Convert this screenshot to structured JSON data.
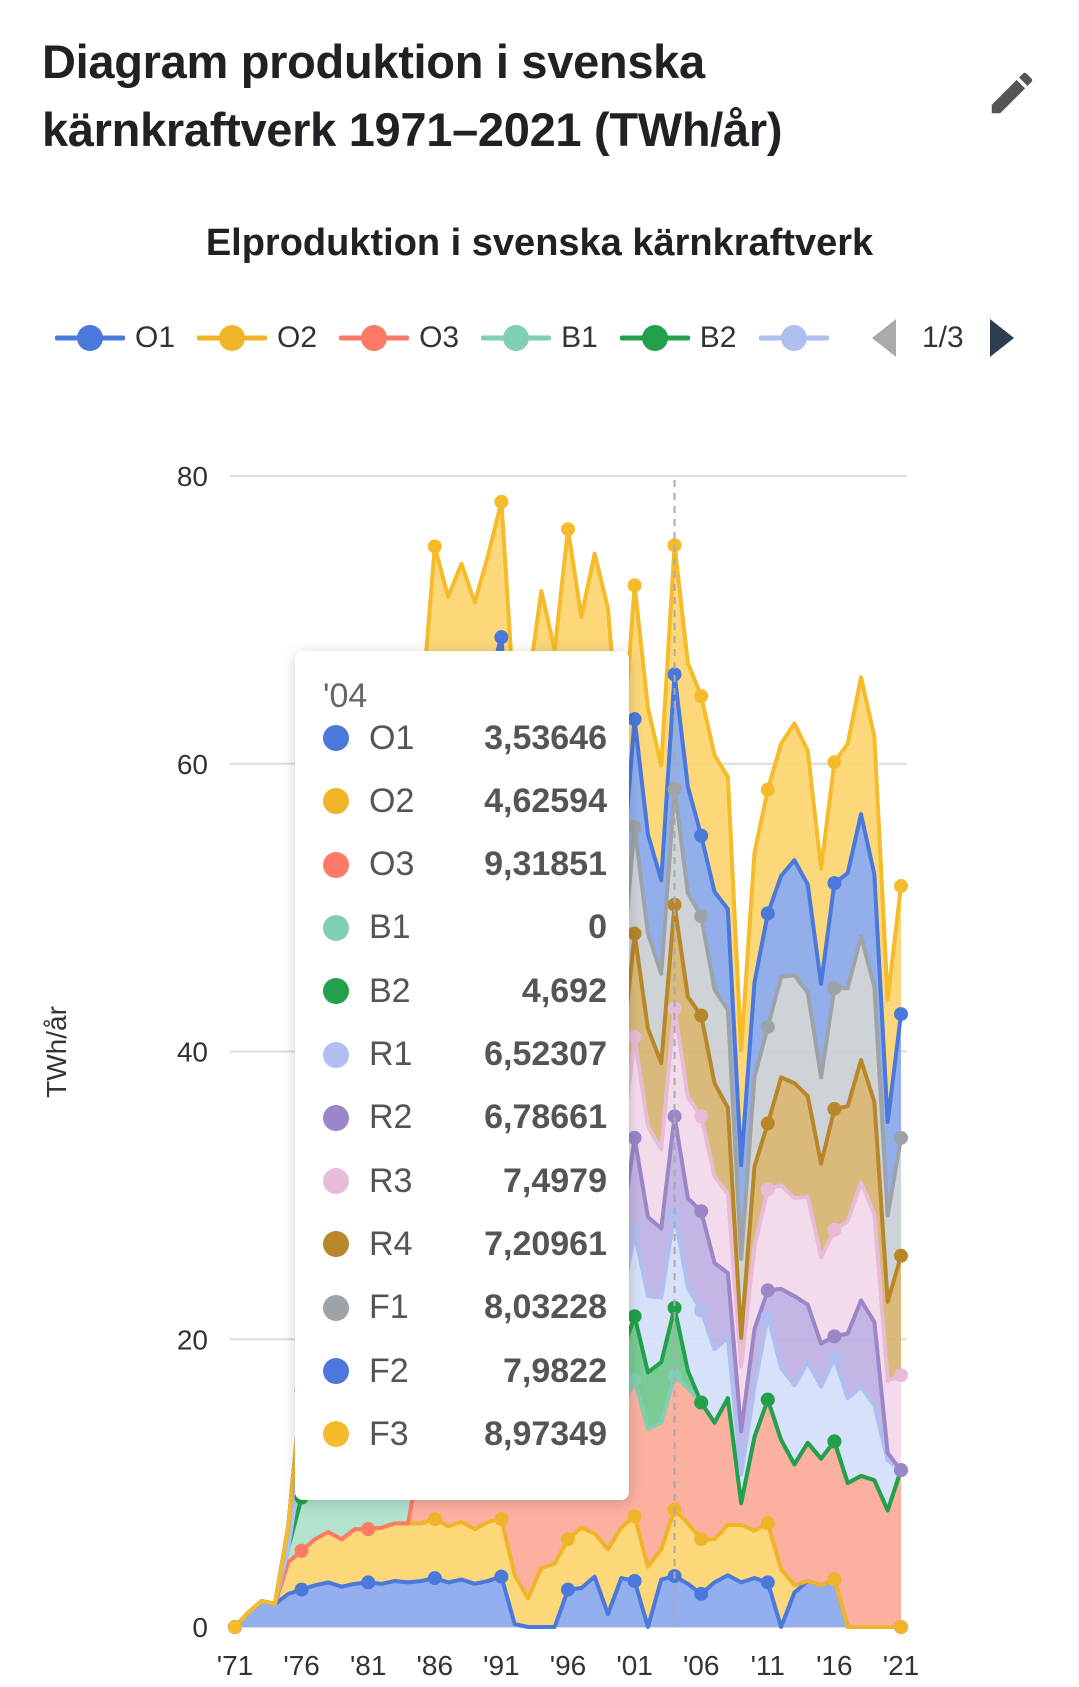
{
  "header": {
    "title": "Diagram produktion i svenska kärnkraftverk 1971–2021 (TWh/år)",
    "edit_icon": "pencil-icon"
  },
  "legend_pager": {
    "label": "1/3"
  },
  "tooltip": {
    "title": "'04",
    "rows": [
      {
        "name": "O1",
        "value": "3,53646"
      },
      {
        "name": "O2",
        "value": "4,62594"
      },
      {
        "name": "O3",
        "value": "9,31851"
      },
      {
        "name": "B1",
        "value": "0"
      },
      {
        "name": "B2",
        "value": "4,692"
      },
      {
        "name": "R1",
        "value": "6,52307"
      },
      {
        "name": "R2",
        "value": "6,78661"
      },
      {
        "name": "R3",
        "value": "7,4979"
      },
      {
        "name": "R4",
        "value": "7,20961"
      },
      {
        "name": "F1",
        "value": "8,03228"
      },
      {
        "name": "F2",
        "value": "7,9822"
      },
      {
        "name": "F3",
        "value": "8,97349"
      }
    ]
  },
  "chart_data": {
    "type": "area",
    "stacked": true,
    "title": "Elproduktion i svenska kärnkraftverk",
    "xlabel": "",
    "ylabel": "TWh/år",
    "ylim": [
      0,
      80
    ],
    "yticks": [
      "0",
      "20",
      "40",
      "60",
      "80"
    ],
    "xticks": [
      "'71",
      "'76",
      "'81",
      "'86",
      "'91",
      "'96",
      "'01",
      "'06",
      "'11",
      "'16",
      "'21"
    ],
    "x": [
      1971,
      1972,
      1973,
      1974,
      1975,
      1976,
      1977,
      1978,
      1979,
      1980,
      1981,
      1982,
      1983,
      1984,
      1985,
      1986,
      1987,
      1988,
      1989,
      1990,
      1991,
      1992,
      1993,
      1994,
      1995,
      1996,
      1997,
      1998,
      1999,
      2000,
      2001,
      2002,
      2003,
      2004,
      2005,
      2006,
      2007,
      2008,
      2009,
      2010,
      2011,
      2012,
      2013,
      2014,
      2015,
      2016,
      2017,
      2018,
      2019,
      2020,
      2021
    ],
    "highlight_year": 2004,
    "grid": true,
    "legend_position": "top",
    "series": [
      {
        "name": "O1",
        "line": "#4a78db",
        "fill": "#88a6ee",
        "values": [
          0,
          1.0,
          1.8,
          1.6,
          2.3,
          2.6,
          2.9,
          3.1,
          2.8,
          3.0,
          3.1,
          3.0,
          3.2,
          3.1,
          3.2,
          3.4,
          3.1,
          3.3,
          3.0,
          3.2,
          3.5,
          0.2,
          0,
          0,
          0,
          2.6,
          2.7,
          3.5,
          0.9,
          3.4,
          3.2,
          0,
          3.3,
          3.54,
          3.0,
          2.3,
          3.1,
          3.6,
          3.1,
          3.4,
          3.1,
          0,
          2.4,
          3.2,
          2.9,
          3.3,
          0,
          0,
          0,
          0,
          0
        ]
      },
      {
        "name": "O2",
        "line": "#f0b429",
        "fill": "#fcd46b",
        "values": [
          0,
          0,
          0,
          0,
          2.2,
          2.7,
          3.2,
          3.5,
          3.3,
          3.8,
          3.7,
          3.9,
          4.0,
          4.1,
          4.0,
          4.1,
          3.9,
          4.0,
          3.8,
          4.1,
          4.0,
          3.4,
          2.0,
          4.1,
          4.4,
          3.5,
          4.2,
          3.0,
          4.5,
          3.5,
          4.5,
          4.2,
          2.1,
          4.63,
          4.2,
          3.8,
          3.0,
          3.5,
          4.0,
          3.3,
          4.1,
          4.0,
          0.5,
          0,
          0,
          0,
          0,
          0,
          0,
          0,
          0
        ]
      },
      {
        "name": "O3",
        "line": "#ff7a66",
        "fill": "#fca796",
        "values": [
          0,
          0,
          0,
          0,
          0,
          0,
          0,
          0,
          0,
          0,
          0,
          0,
          0,
          0,
          5.5,
          8.5,
          9.0,
          8.7,
          9.2,
          9.0,
          9.5,
          8.8,
          9.3,
          9.0,
          8.5,
          9.4,
          8.6,
          9.8,
          9.0,
          8.2,
          9.5,
          9.6,
          8.8,
          9.32,
          9.4,
          9.5,
          8.1,
          8.8,
          1.5,
          6.5,
          8.6,
          9.0,
          8.4,
          9.6,
          8.8,
          9.6,
          10.0,
          10.5,
          10.2,
          8.1,
          10.9
        ]
      },
      {
        "name": "B1",
        "line": "#7fcfb0",
        "fill": "#a8e0c8",
        "values": [
          0,
          0,
          0,
          0,
          1.0,
          3.7,
          3.9,
          4.0,
          3.5,
          4.1,
          4.0,
          3.9,
          4.2,
          4.3,
          4.1,
          4.3,
          4.0,
          4.2,
          4.1,
          4.0,
          4.3,
          3.8,
          4.0,
          4.1,
          3.7,
          4.4,
          4.1,
          4.3,
          3.0,
          0,
          0,
          0,
          0,
          0,
          0,
          0,
          0,
          0,
          0,
          0,
          0,
          0,
          0,
          0,
          0,
          0,
          0,
          0,
          0,
          0,
          0
        ]
      },
      {
        "name": "B2",
        "line": "#22a04b",
        "fill": "#6cc48a",
        "values": [
          0,
          0,
          0,
          0,
          0,
          0,
          2.8,
          4.1,
          3.9,
          4.2,
          4.3,
          4.0,
          4.4,
          4.3,
          4.2,
          4.5,
          4.1,
          4.4,
          4.3,
          4.2,
          4.5,
          4.0,
          3.9,
          4.4,
          4.2,
          4.6,
          4.1,
          4.3,
          4.0,
          3.8,
          4.4,
          3.9,
          4.2,
          4.692,
          1.2,
          0,
          0,
          0,
          0,
          0,
          0,
          0,
          0,
          0,
          0,
          0,
          0,
          0,
          0,
          0,
          0
        ]
      },
      {
        "name": "R1",
        "line": "#aebff0",
        "fill": "#d4defa",
        "values": [
          0,
          0,
          0,
          0,
          0,
          2.5,
          4.5,
          5.0,
          4.8,
          5.2,
          5.5,
          5.3,
          5.8,
          5.6,
          5.9,
          6.0,
          5.5,
          5.8,
          5.2,
          5.6,
          6.2,
          4.5,
          5.0,
          5.8,
          5.4,
          6.1,
          5.2,
          5.9,
          5.6,
          3.5,
          5.8,
          5.3,
          4.5,
          6.52,
          5.8,
          6.4,
          5.1,
          4.2,
          2.0,
          3.5,
          5.8,
          5.0,
          5.5,
          5.6,
          5.0,
          5.8,
          5.9,
          6.2,
          5.2,
          3.5,
          0
        ]
      },
      {
        "name": "R2",
        "line": "#9a86c9",
        "fill": "#bcaee2",
        "values": [
          0,
          0,
          0,
          0,
          1.5,
          5.0,
          5.5,
          5.8,
          5.5,
          6.0,
          6.2,
          5.9,
          6.4,
          6.3,
          6.1,
          6.5,
          6.0,
          6.3,
          6.1,
          6.4,
          6.8,
          5.5,
          6.0,
          6.5,
          6.2,
          6.8,
          6.0,
          6.5,
          6.4,
          5.0,
          6.6,
          5.5,
          4.8,
          6.79,
          6.2,
          6.9,
          6.0,
          4.5,
          3.0,
          4.0,
          1.8,
          5.5,
          6.2,
          4.0,
          3.0,
          1.5,
          4.5,
          6.0,
          5.8,
          0.5,
          0
        ]
      },
      {
        "name": "R3",
        "line": "#e8bcd8",
        "fill": "#f3d7ea",
        "values": [
          0,
          0,
          0,
          0,
          0,
          0,
          0,
          0,
          0,
          0,
          3.0,
          6.0,
          6.5,
          6.8,
          6.6,
          7.0,
          6.5,
          6.8,
          6.4,
          6.9,
          7.2,
          5.8,
          6.5,
          7.0,
          6.3,
          7.1,
          6.2,
          6.8,
          6.9,
          5.5,
          7.0,
          6.3,
          5.5,
          7.5,
          7.0,
          6.6,
          6.0,
          5.5,
          4.5,
          5.8,
          7.0,
          7.2,
          6.8,
          7.5,
          6.0,
          7.4,
          7.8,
          8.2,
          7.5,
          5.0,
          6.6
        ]
      },
      {
        "name": "R4",
        "line": "#b8872a",
        "fill": "#d6b36c",
        "values": [
          0,
          0,
          0,
          0,
          0,
          0,
          0,
          0,
          0,
          0,
          0,
          0,
          3.5,
          6.8,
          7.0,
          7.2,
          6.9,
          7.1,
          6.8,
          7.3,
          7.5,
          6.5,
          6.8,
          7.2,
          6.7,
          7.4,
          6.6,
          7.0,
          7.1,
          6.2,
          7.2,
          6.8,
          6.0,
          7.21,
          7.0,
          7.0,
          6.5,
          6.0,
          2.0,
          5.5,
          4.6,
          7.5,
          8.0,
          7.0,
          6.5,
          8.4,
          8.0,
          8.5,
          7.8,
          5.5,
          8.3
        ]
      },
      {
        "name": "F1",
        "line": "#9ea3a8",
        "fill": "#c9ced4",
        "values": [
          0,
          0,
          0,
          0,
          0,
          0,
          0,
          0,
          0,
          2.0,
          6.0,
          6.5,
          7.0,
          7.2,
          7.0,
          7.3,
          7.0,
          7.2,
          6.9,
          7.4,
          7.6,
          6.8,
          6.5,
          7.3,
          6.9,
          7.5,
          6.9,
          7.2,
          7.1,
          6.0,
          7.4,
          6.6,
          6.2,
          8.03,
          7.2,
          6.9,
          6.5,
          6.8,
          5.5,
          6.2,
          6.7,
          7.0,
          7.5,
          7.2,
          6.0,
          8.4,
          8.2,
          8.6,
          8.0,
          6.0,
          8.2
        ]
      },
      {
        "name": "F2",
        "line": "#4a78db",
        "fill": "#86a6ea",
        "values": [
          0,
          0,
          0,
          0,
          0,
          0,
          0,
          0,
          0,
          0,
          2.5,
          6.0,
          6.8,
          7.0,
          7.1,
          7.3,
          7.0,
          7.2,
          7.0,
          7.4,
          7.7,
          6.5,
          6.9,
          7.4,
          7.0,
          7.6,
          7.1,
          7.3,
          7.2,
          6.5,
          7.5,
          6.9,
          6.5,
          7.98,
          7.4,
          5.6,
          6.8,
          7.0,
          6.5,
          6.6,
          7.9,
          7.0,
          8.0,
          7.5,
          6.5,
          7.3,
          8.0,
          8.5,
          7.8,
          6.5,
          8.6
        ]
      },
      {
        "name": "F3",
        "line": "#f6bb2a",
        "fill": "#fcd46c",
        "values": [
          0,
          0,
          0,
          0,
          0,
          0,
          0,
          0,
          0,
          0,
          0,
          0,
          0,
          0,
          3.0,
          9.0,
          8.6,
          8.9,
          8.4,
          9.0,
          9.4,
          7.8,
          8.5,
          9.2,
          8.6,
          9.3,
          8.5,
          9.0,
          9.1,
          8.0,
          9.3,
          8.8,
          8.0,
          8.97,
          8.6,
          9.7,
          9.5,
          9.2,
          8.0,
          9.0,
          8.6,
          9.2,
          9.5,
          9.3,
          8.0,
          8.4,
          9.0,
          9.5,
          9.6,
          8.5,
          8.9
        ]
      }
    ]
  }
}
